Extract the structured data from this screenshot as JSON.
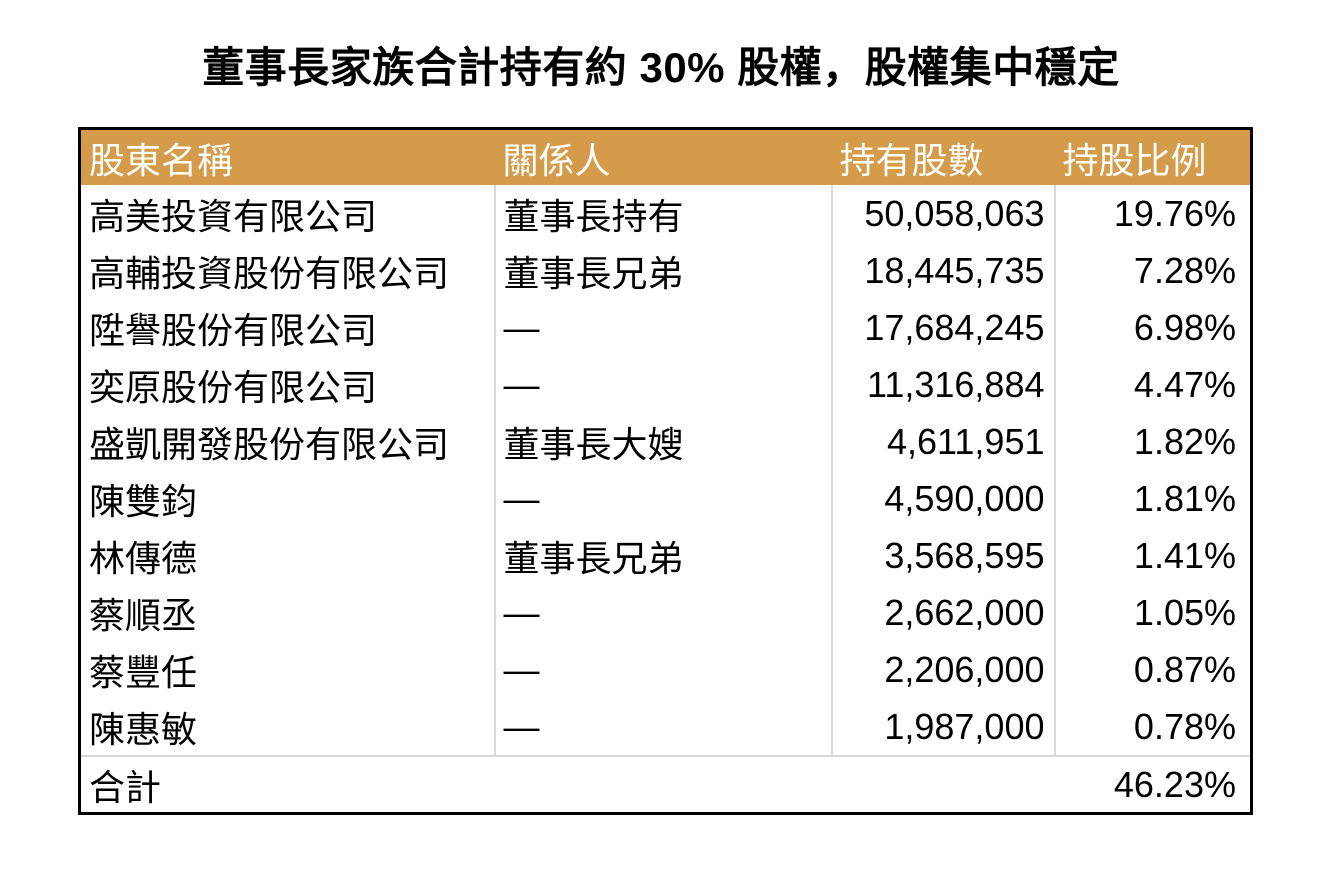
{
  "slide": {
    "title": "董事長家族合計持有約 30% 股權，股權集中穩定"
  },
  "table": {
    "headers": {
      "shareholder": "股東名稱",
      "relation": "關係人",
      "shares": "持有股數",
      "ratio": "持股比例"
    },
    "rows": [
      {
        "shareholder": "高美投資有限公司",
        "relation": "董事長持有",
        "shares": "50,058,063",
        "ratio": "19.76%"
      },
      {
        "shareholder": "高輔投資股份有限公司",
        "relation": "董事長兄弟",
        "shares": "18,445,735",
        "ratio": "7.28%"
      },
      {
        "shareholder": "陞譽股份有限公司",
        "relation": "—",
        "shares": "17,684,245",
        "ratio": "6.98%"
      },
      {
        "shareholder": "奕原股份有限公司",
        "relation": "—",
        "shares": "11,316,884",
        "ratio": "4.47%"
      },
      {
        "shareholder": "盛凱開發股份有限公司",
        "relation": "董事長大嫂",
        "shares": "4,611,951",
        "ratio": "1.82%"
      },
      {
        "shareholder": "陳雙鈞",
        "relation": "—",
        "shares": "4,590,000",
        "ratio": "1.81%"
      },
      {
        "shareholder": "林傳德",
        "relation": "董事長兄弟",
        "shares": "3,568,595",
        "ratio": "1.41%"
      },
      {
        "shareholder": "蔡順丞",
        "relation": "—",
        "shares": "2,662,000",
        "ratio": "1.05%"
      },
      {
        "shareholder": "蔡豐任",
        "relation": "—",
        "shares": "2,206,000",
        "ratio": "0.87%"
      },
      {
        "shareholder": "陳惠敏",
        "relation": "—",
        "shares": "1,987,000",
        "ratio": "0.78%"
      }
    ],
    "total": {
      "label": "合計",
      "ratio": "46.23%"
    }
  },
  "colors": {
    "header_background": "#D49C4A",
    "header_text": "#FFFFFF",
    "outer_border": "#000000",
    "column_divider": "#D8D8D8",
    "body_text": "#000000",
    "page_background": "#FFFFFF"
  }
}
